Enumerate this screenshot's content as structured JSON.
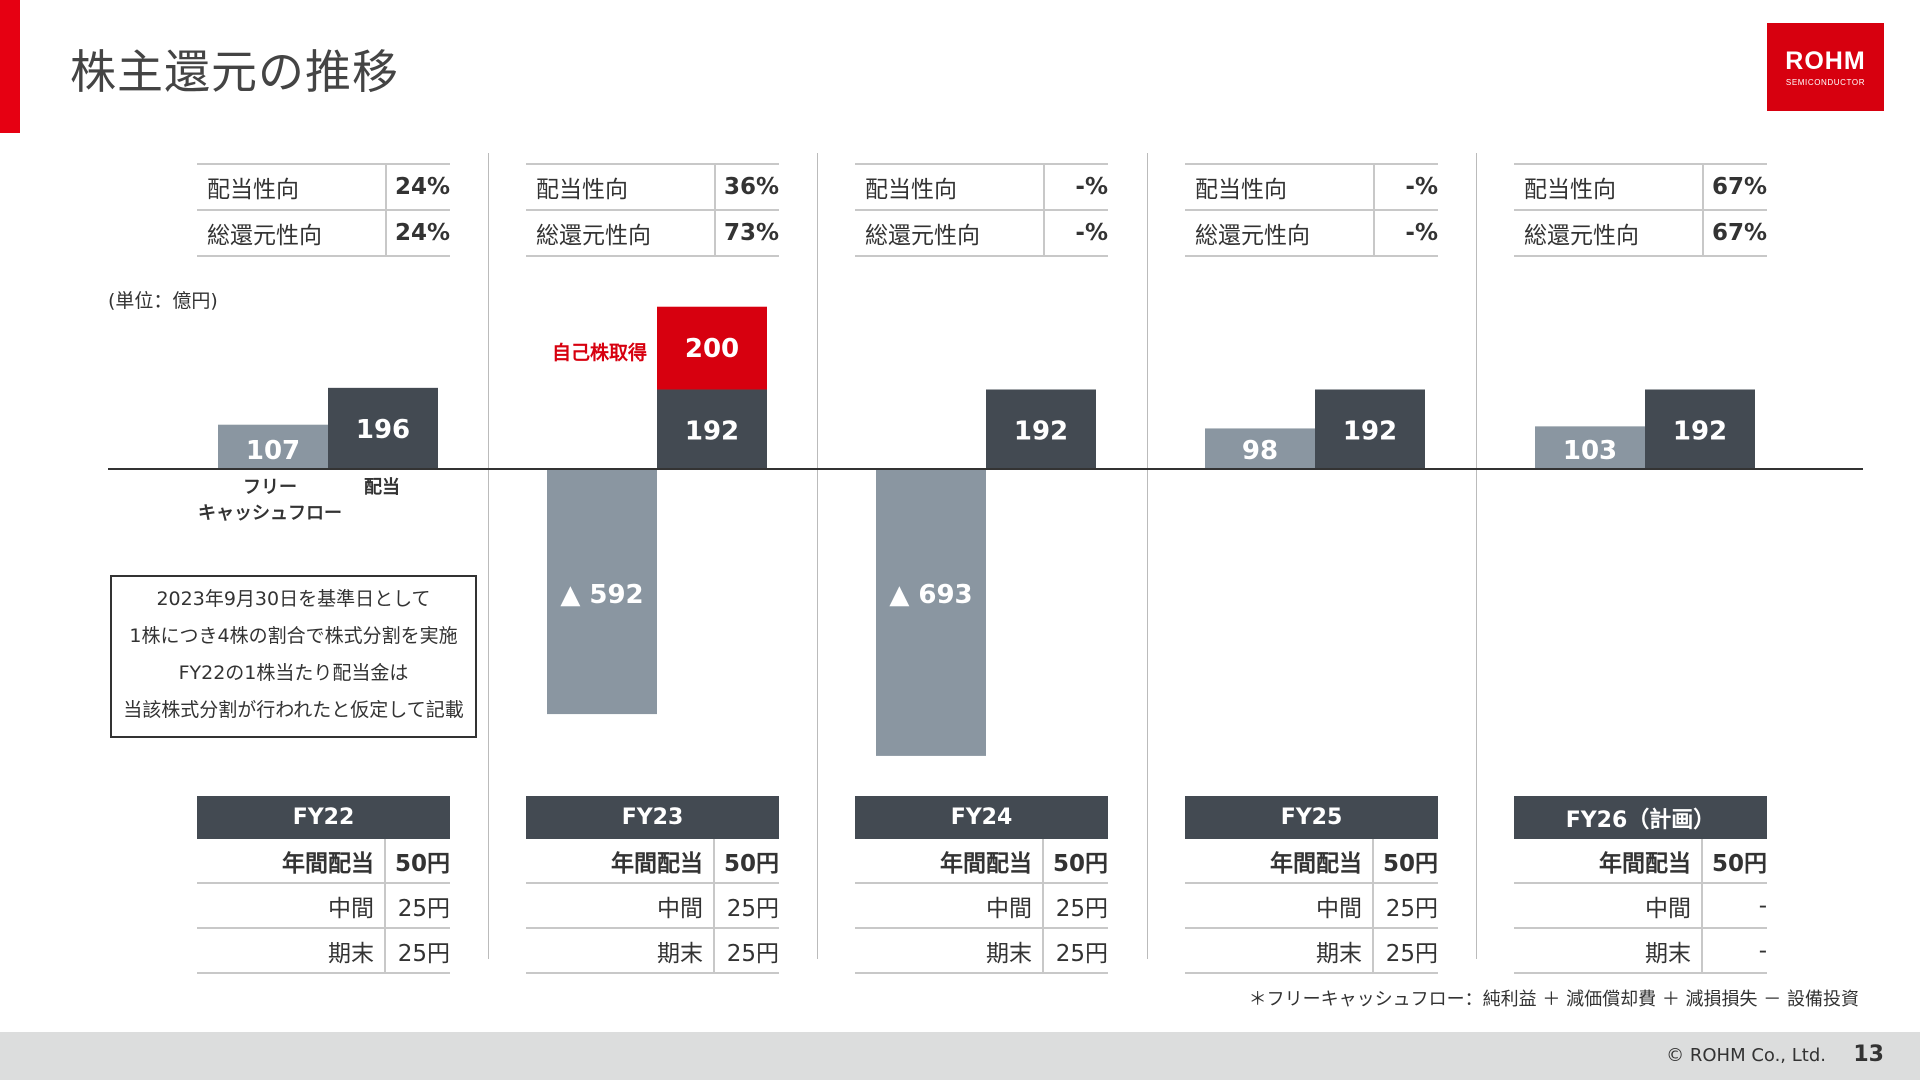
{
  "title": "株主還元の推移",
  "logo": {
    "name": "ROHM",
    "sub": "SEMICONDUCTOR"
  },
  "ratio_labels": {
    "payout": "配当性向",
    "total_return": "総還元性向"
  },
  "fiscal_years": [
    {
      "label": "FY22",
      "payout": "24%",
      "total_return": "24%",
      "annual_label": "年間配当",
      "annual": "50円",
      "interim_label": "中間",
      "interim": "25円",
      "yearend_label": "期末",
      "yearend": "25円"
    },
    {
      "label": "FY23",
      "payout": "36%",
      "total_return": "73%",
      "annual_label": "年間配当",
      "annual": "50円",
      "interim_label": "中間",
      "interim": "25円",
      "yearend_label": "期末",
      "yearend": "25円"
    },
    {
      "label": "FY24",
      "payout": "-%",
      "total_return": "-%",
      "annual_label": "年間配当",
      "annual": "50円",
      "interim_label": "中間",
      "interim": "25円",
      "yearend_label": "期末",
      "yearend": "25円"
    },
    {
      "label": "FY25",
      "payout": "-%",
      "total_return": "-%",
      "annual_label": "年間配当",
      "annual": "50円",
      "interim_label": "中間",
      "interim": "25円",
      "yearend_label": "期末",
      "yearend": "25円"
    },
    {
      "label": "FY26（計画）",
      "payout": "67%",
      "total_return": "67%",
      "annual_label": "年間配当",
      "annual": "50円",
      "interim_label": "中間",
      "interim": "-",
      "yearend_label": "期末",
      "yearend": "-"
    }
  ],
  "unit_label": "(単位：億円)",
  "note_lines": [
    "2023年9月30日を基準日として",
    "1株につき4株の割合で株式分割を実施",
    "FY22の1株当たり配当金は",
    "当該株式分割が行われたと仮定して記載"
  ],
  "fcf_note": "＊フリーキャッシュフロー：純利益 ＋ 減価償却費 ＋ 減損損失 － 設備投資",
  "copyright": "© ROHM Co., Ltd.",
  "page_number": "13",
  "colors": {
    "fcf": "#8a96a1",
    "dividend": "#434a52",
    "buyback": "#d7000f",
    "accent": "#e60012"
  },
  "chart_data": {
    "type": "bar",
    "categories": [
      "FY22",
      "FY23",
      "FY24",
      "FY25",
      "FY26（計画）"
    ],
    "series": [
      {
        "name": "フリーキャッシュフロー",
        "values": [
          107,
          -592,
          -693,
          98,
          103
        ],
        "labels": [
          "107",
          "▲ 592",
          "▲ 693",
          "98",
          "103"
        ]
      },
      {
        "name": "配当",
        "values": [
          196,
          192,
          192,
          192,
          192
        ],
        "labels": [
          "196",
          "192",
          "192",
          "192",
          "192"
        ]
      },
      {
        "name": "自己株取得",
        "values": [
          0,
          200,
          0,
          0,
          0
        ],
        "labels": [
          "",
          "200",
          "",
          "",
          ""
        ]
      }
    ],
    "legend_labels": {
      "fcf_line1": "フリー",
      "fcf_line2": "キャッシュフロー",
      "dividend": "配当",
      "buyback": "自己株取得"
    },
    "unit": "億円",
    "grid": false
  }
}
